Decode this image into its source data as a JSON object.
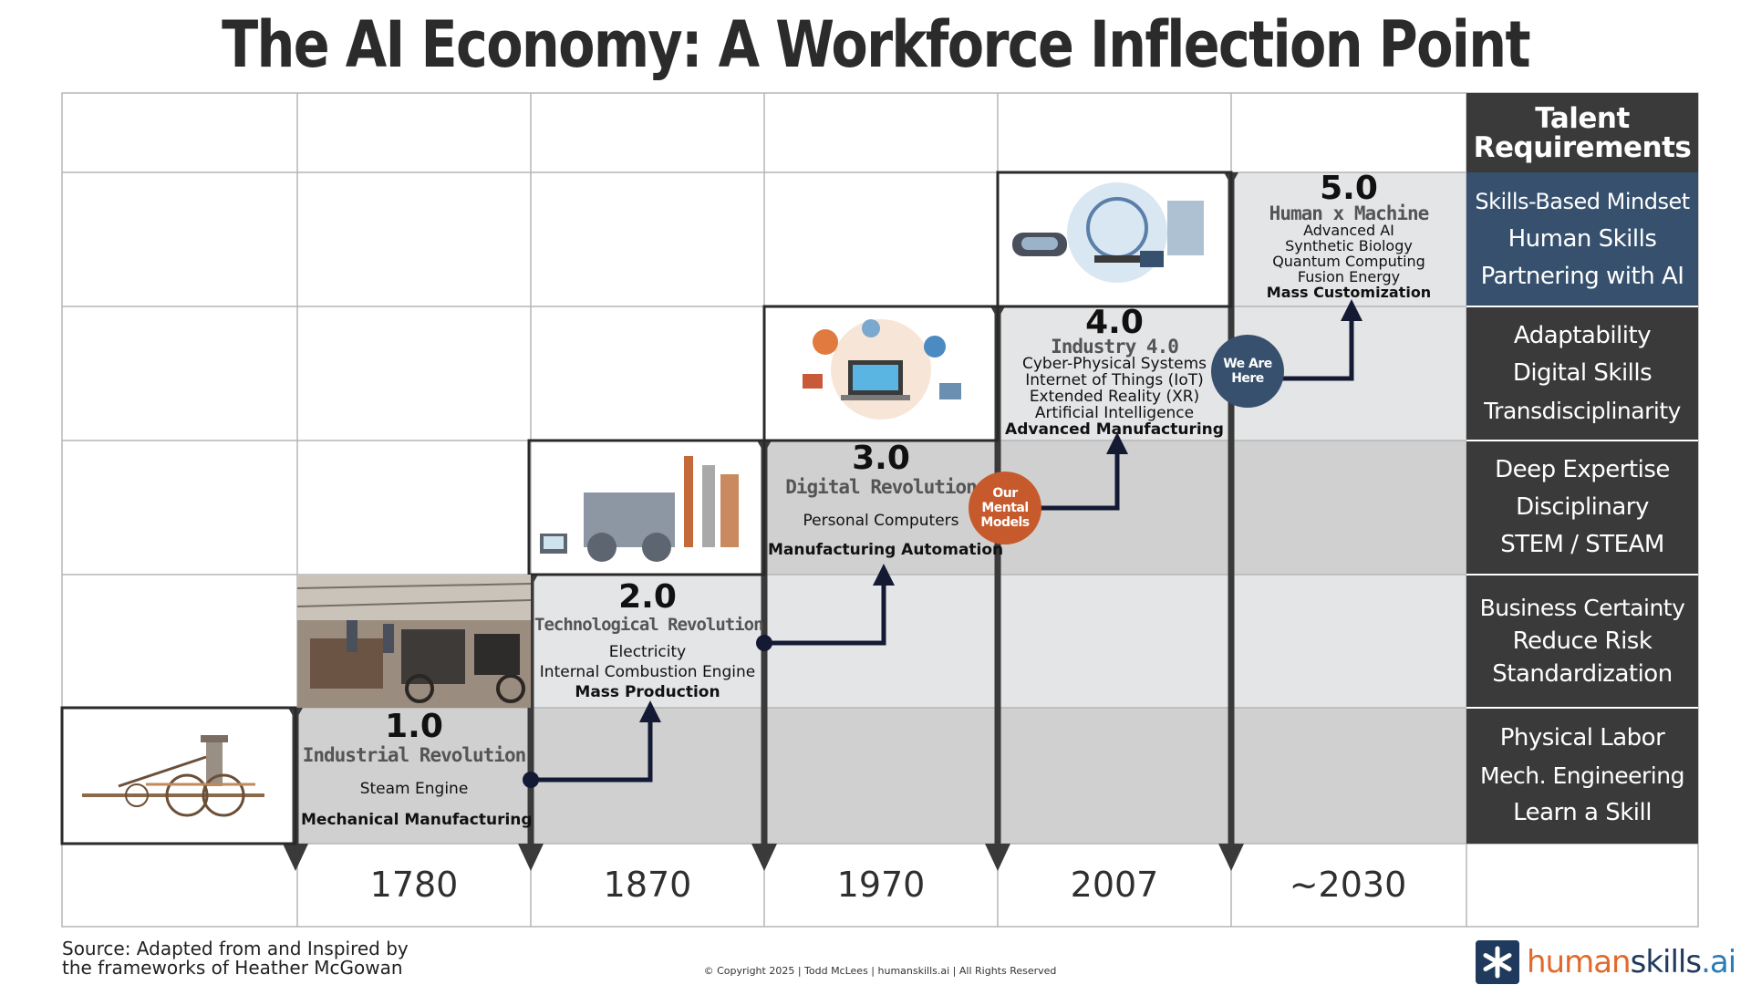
{
  "title": "The AI Economy: A Workforce Inflection Point",
  "talent": {
    "header_line1": "Talent",
    "header_line2": "Requirements",
    "rows": [
      [
        "Skills-Based Mindset",
        "Human Skills",
        "Partnering with AI"
      ],
      [
        "Adaptability",
        "Digital Skills",
        "Transdisciplinarity"
      ],
      [
        "Deep Expertise",
        "Disciplinary",
        "STEM / STEAM"
      ],
      [
        "Business Certainty",
        "Reduce Risk",
        "Standardization"
      ],
      [
        "Physical Labor",
        "Mech. Engineering",
        "Learn a Skill"
      ]
    ]
  },
  "years": [
    "1780",
    "1870",
    "1970",
    "2007",
    "~2030"
  ],
  "eras": [
    {
      "num": "1.0",
      "name": "Industrial Revolution",
      "tech": [
        "Steam Engine"
      ],
      "highlight": "Mechanical Manufacturing",
      "image": "steam-engine-illustration"
    },
    {
      "num": "2.0",
      "name": "Technological Revolution",
      "tech": [
        "Electricity",
        "Internal Combustion Engine"
      ],
      "highlight": "Mass Production",
      "image": "factory-assembly-photo"
    },
    {
      "num": "3.0",
      "name": "Digital Revolution",
      "tech": [
        "Personal Computers"
      ],
      "highlight": "Manufacturing Automation",
      "image": "industrial-machinery-illustration"
    },
    {
      "num": "4.0",
      "name": "Industry 4.0",
      "tech": [
        "Cyber-Physical Systems",
        "Internet of Things (IoT)",
        "Extended Reality (XR)",
        "Artificial Intelligence"
      ],
      "highlight": "Advanced Manufacturing",
      "image": "connected-devices-illustration"
    },
    {
      "num": "5.0",
      "name": "Human x Machine",
      "tech": [
        "Advanced AI",
        "Synthetic Biology",
        "Quantum Computing",
        "Fusion Energy"
      ],
      "highlight": "Mass Customization",
      "image": "human-machine-illustration"
    }
  ],
  "badges": {
    "mental_models": [
      "Our",
      "Mental",
      "Models"
    ],
    "we_are_here": [
      "We Are",
      "Here"
    ]
  },
  "source": [
    "Source: Adapted from and Inspired by",
    "the frameworks of Heather McGowan"
  ],
  "copyright": "© Copyright 2025 |  Todd McLees  |  humanskills.ai  | All Rights Reserved",
  "brand": {
    "part1": "human",
    "part2": "skills",
    "part3": ".ai"
  },
  "colors": {
    "cell_dark": "#d0d0d0",
    "cell_light": "#e4e5e7",
    "talent_dark": "#3a3a3a",
    "talent_blue": "#36506e",
    "arrow": "#141a33",
    "badge_orange": "#c65a2c",
    "badge_blue": "#36506e",
    "brand_orange": "#e06a2c",
    "brand_blue": "#2a7db8"
  }
}
